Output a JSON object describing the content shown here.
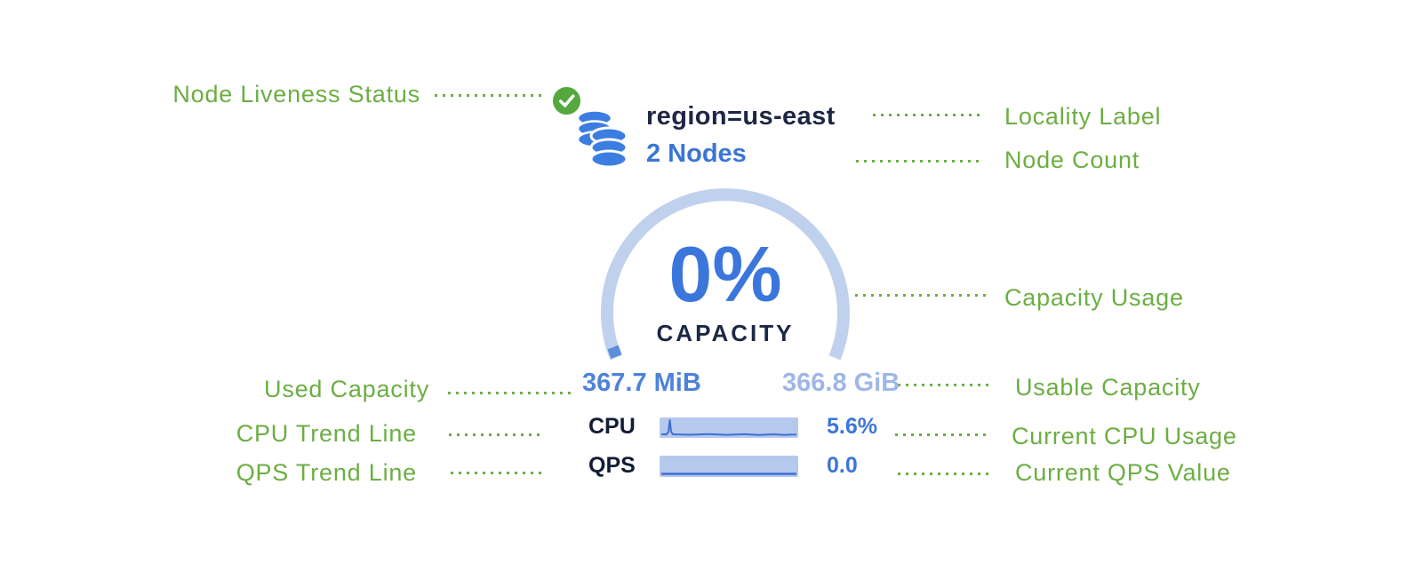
{
  "annotations": {
    "left": [
      {
        "label": "Node Liveness Status",
        "points_to": "liveness-check-icon"
      },
      {
        "label": "Used Capacity",
        "points_to": "used-capacity-value"
      },
      {
        "label": "CPU Trend Line",
        "points_to": "cpu-sparkline"
      },
      {
        "label": "QPS Trend Line",
        "points_to": "qps-sparkline"
      }
    ],
    "right": [
      {
        "label": "Locality Label",
        "points_to": "locality-label"
      },
      {
        "label": "Node Count",
        "points_to": "node-count"
      },
      {
        "label": "Capacity Usage",
        "points_to": "capacity-gauge"
      },
      {
        "label": "Usable Capacity",
        "points_to": "usable-capacity-value"
      },
      {
        "label": "Current CPU Usage",
        "points_to": "cpu-value"
      },
      {
        "label": "Current QPS Value",
        "points_to": "qps-value"
      }
    ]
  },
  "widget": {
    "liveness_icon": "check-circle-icon",
    "node_icon": "database-stack-icon",
    "locality": "region=us-east",
    "node_count": "2 Nodes",
    "capacity": {
      "percent": "0%",
      "label": "CAPACITY",
      "used": "367.7 MiB",
      "usable": "366.8 GiB"
    },
    "cpu": {
      "label": "CPU",
      "value": "5.6%",
      "trend": [
        [
          2,
          19
        ],
        [
          8,
          19
        ],
        [
          10,
          16
        ],
        [
          11.5,
          3
        ],
        [
          13,
          16
        ],
        [
          15,
          19
        ],
        [
          35,
          19.5
        ],
        [
          55,
          18.8
        ],
        [
          75,
          19.6
        ],
        [
          95,
          18.9
        ],
        [
          112,
          19.8
        ],
        [
          128,
          19
        ],
        [
          140,
          19.6
        ],
        [
          154,
          19.2
        ]
      ]
    },
    "qps": {
      "label": "QPS",
      "value": "0.0",
      "trend": [
        [
          2,
          20.5
        ],
        [
          154,
          20.5
        ]
      ]
    }
  },
  "colors": {
    "annotation_green": "#6cae43",
    "liveness_green": "#55a83e",
    "icon_blue": "#3c7de2",
    "navy_text": "#1c2744",
    "percent_blue": "#3b76db",
    "used_blue": "#4e82d9",
    "usable_light_blue": "#9fb7e7",
    "gauge_arc": "#c0d1ee",
    "gauge_used_tick": "#5b8fd9",
    "sparkline_bg": "#b5c9ec",
    "sparkline_line": "#3f6fd4",
    "background": "#ffffff"
  }
}
